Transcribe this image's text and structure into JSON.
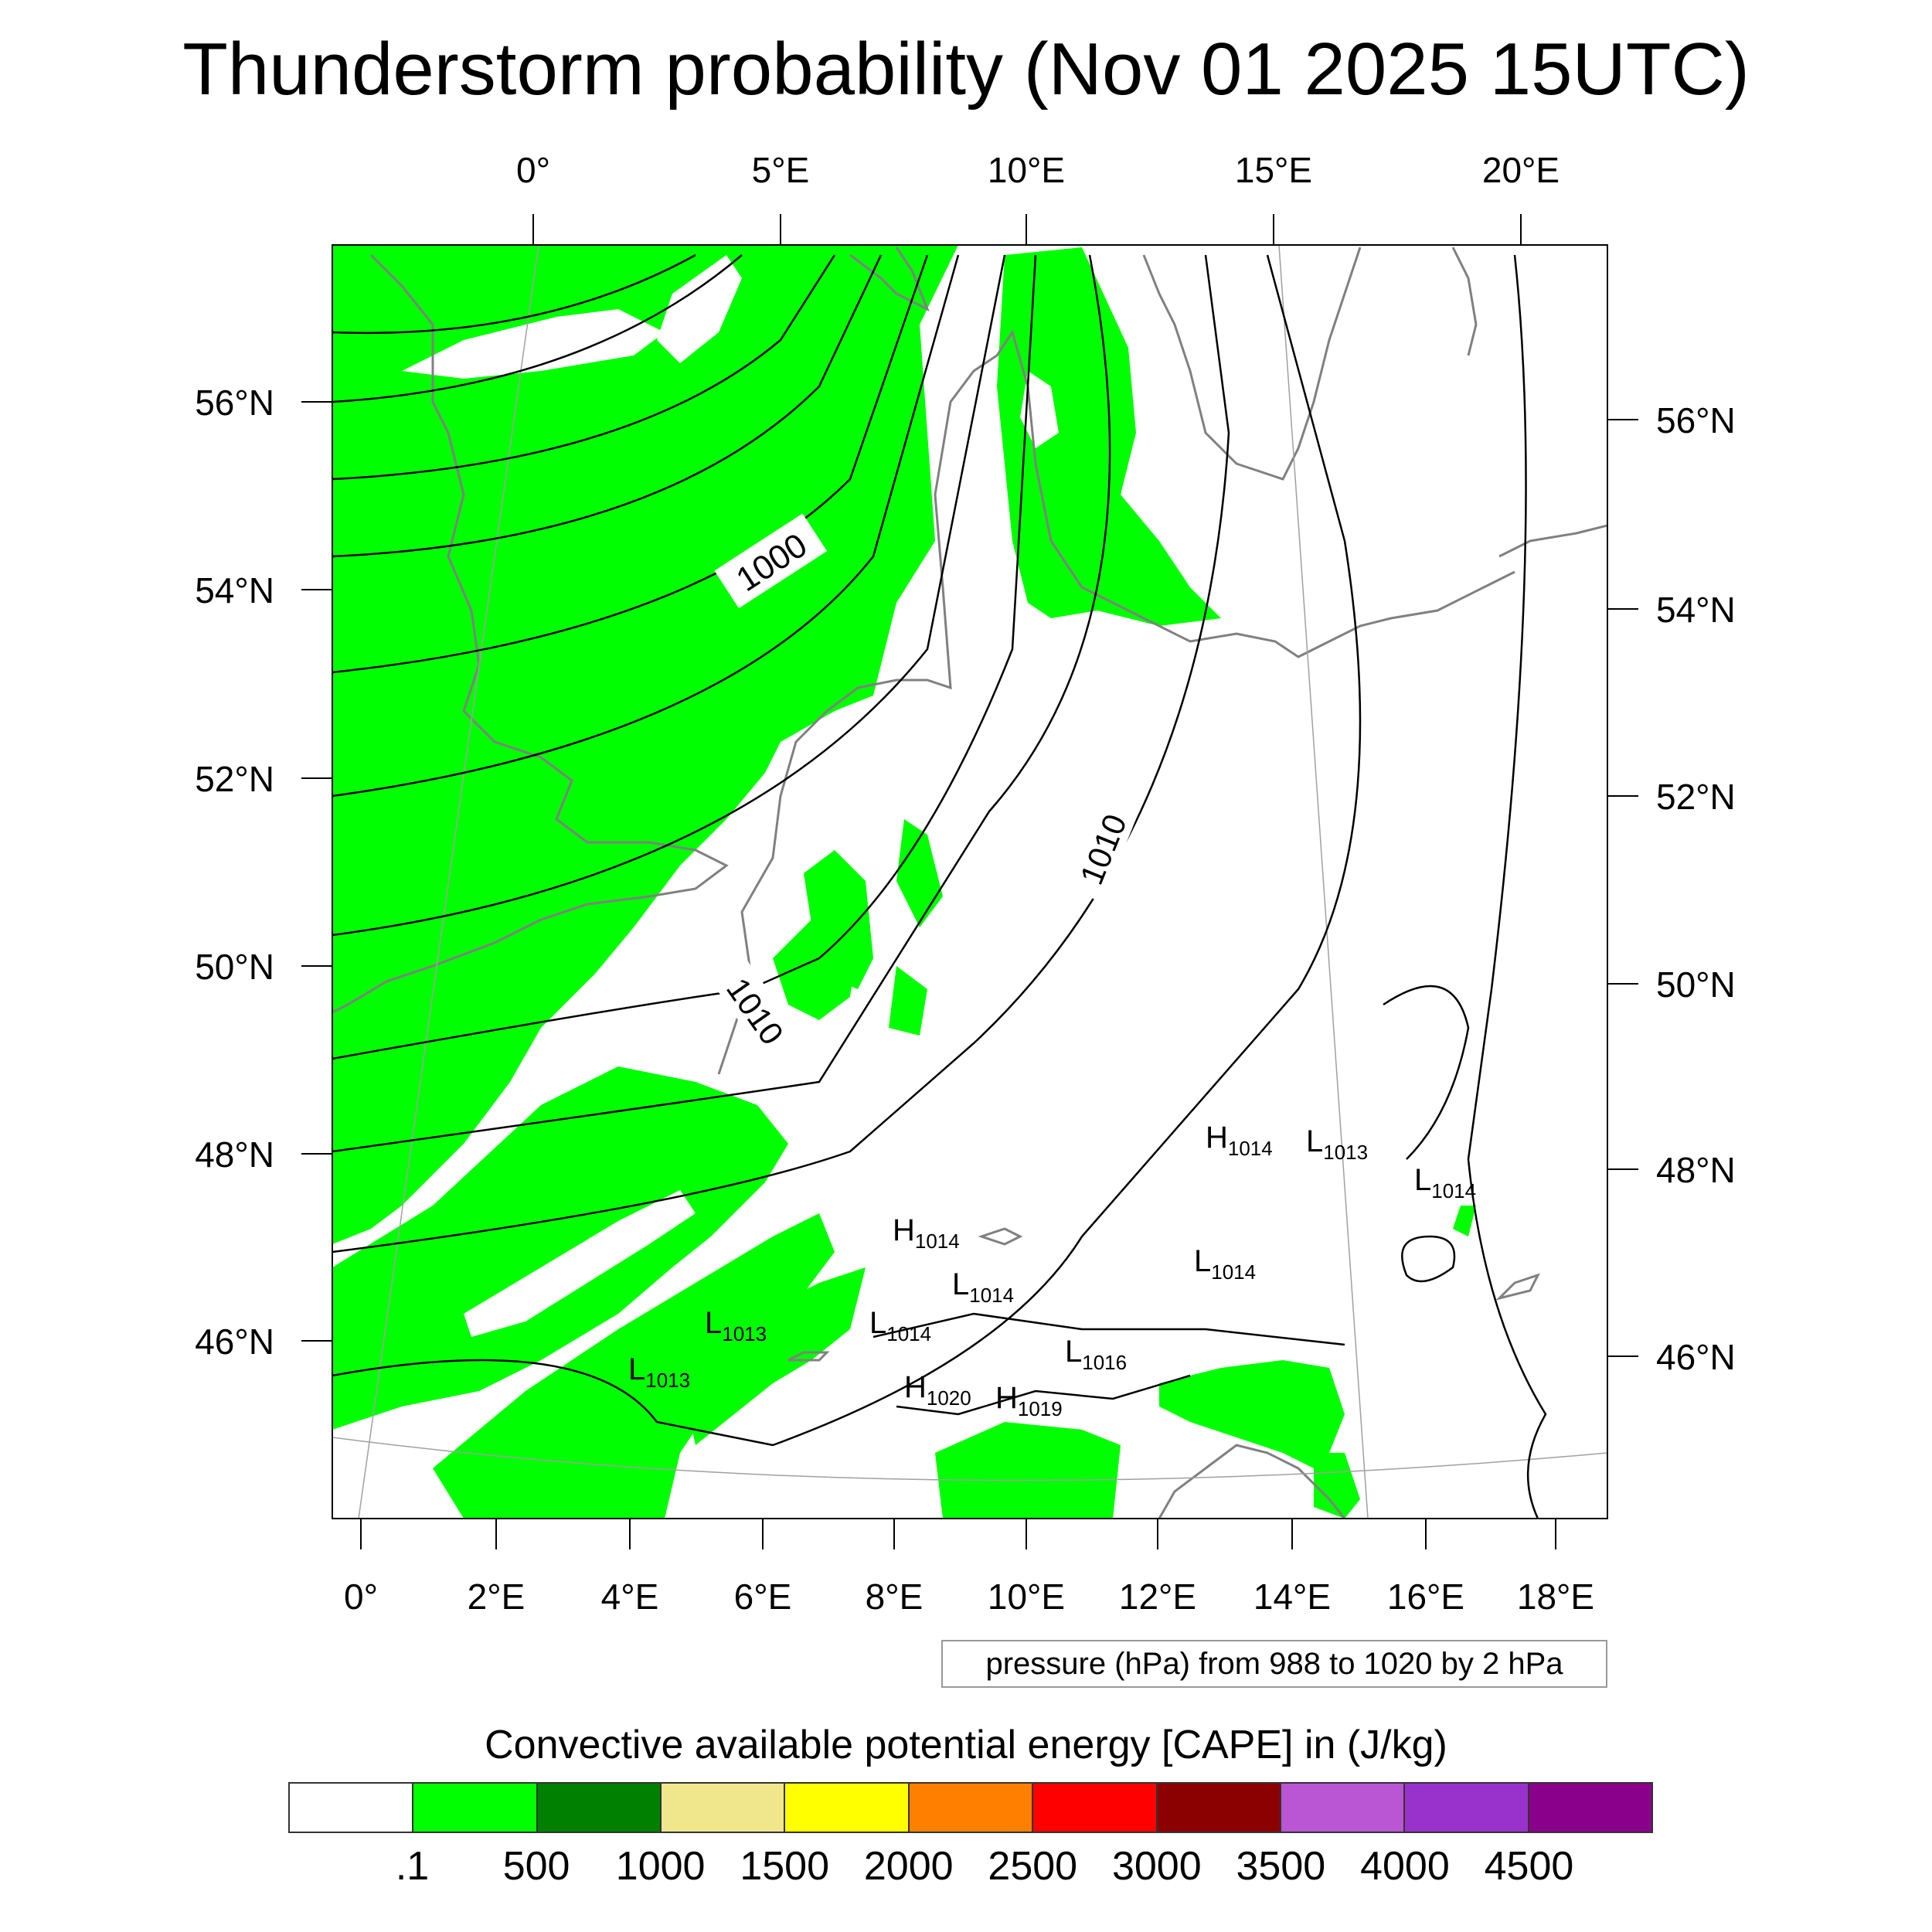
{
  "title": "Thunderstorm probability (Nov 01 2025 15UTC)",
  "axes": {
    "top_lon_labels": [
      "0°",
      "5°E",
      "10°E",
      "15°E",
      "20°E"
    ],
    "bottom_lon_labels": [
      "0°",
      "2°E",
      "4°E",
      "6°E",
      "8°E",
      "10°E",
      "12°E",
      "14°E",
      "16°E",
      "18°E"
    ],
    "left_lat_labels": [
      "56°N",
      "54°N",
      "52°N",
      "50°N",
      "48°N",
      "46°N"
    ],
    "right_lat_labels": [
      "56°N",
      "54°N",
      "52°N",
      "50°N",
      "48°N",
      "46°N"
    ]
  },
  "contour_labels": {
    "iso_1000": "1000",
    "iso_1010_a": "1010",
    "iso_1010_b": "1010"
  },
  "pressure_centers": [
    {
      "kind": "H",
      "value": "1014"
    },
    {
      "kind": "L",
      "value": "1013"
    },
    {
      "kind": "L",
      "value": "1014"
    },
    {
      "kind": "H",
      "value": "1014"
    },
    {
      "kind": "L",
      "value": "1014"
    },
    {
      "kind": "L",
      "value": "1014"
    },
    {
      "kind": "L",
      "value": "1013"
    },
    {
      "kind": "L",
      "value": "1014"
    },
    {
      "kind": "L",
      "value": "1013"
    },
    {
      "kind": "L",
      "value": "1016"
    },
    {
      "kind": "H",
      "value": "1020"
    },
    {
      "kind": "H",
      "value": "1019"
    }
  ],
  "contour_info": "pressure (hPa) from 988 to 1020 by 2 hPa",
  "colorbar": {
    "title": "Convective available potential energy [CAPE] in (J/kg)",
    "colors": [
      "#ffffff",
      "#00ff00",
      "#008000",
      "#f0e68c",
      "#ffff00",
      "#ff8000",
      "#ff0000",
      "#8b0000",
      "#ba55d3",
      "#9932cc",
      "#8b008b"
    ],
    "labels": [
      ".1",
      "500",
      "1000",
      "1500",
      "2000",
      "2500",
      "3000",
      "3500",
      "4000",
      "4500"
    ]
  },
  "colors": {
    "cape_low": "#00ff00",
    "coastline": "#808080",
    "isobar": "#000000"
  }
}
